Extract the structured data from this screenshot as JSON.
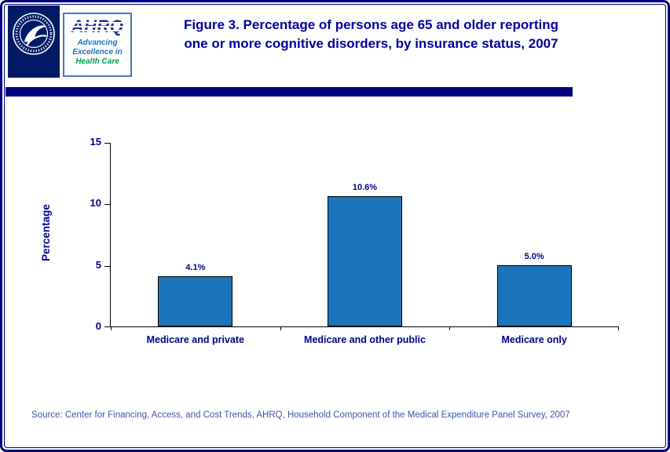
{
  "header": {
    "title_prefix": "Figure 3.",
    "title_line1": "Percentage of persons age 65 and older reporting",
    "title_line2": "one or more cognitive disorders, by insurance status, 2007"
  },
  "logos": {
    "hhs_icon": "hhs-eagle-seal-icon",
    "ahrq_name": "AHRQ",
    "ahrq_tagline": [
      "Advancing",
      "Excellence in",
      "Health Care"
    ]
  },
  "chart_data": {
    "type": "bar",
    "title": "Figure 3. Percentage of persons age 65 and older reporting one or more cognitive disorders, by insurance status, 2007",
    "categories": [
      "Medicare and private",
      "Medicare and other public",
      "Medicare only"
    ],
    "values": [
      4.1,
      10.6,
      5.0
    ],
    "value_labels": [
      "4.1%",
      "10.6%",
      "5.0%"
    ],
    "xlabel": "",
    "ylabel": "Percentage",
    "ylim": [
      0,
      15
    ],
    "yticks": [
      0,
      5,
      10,
      15
    ],
    "grid": false,
    "legend": "none"
  },
  "footer": {
    "source": "Source: Center for Financing, Access, and Cost Trends, AHRQ, Household Component of the Medical Expenditure Panel Survey, 2007"
  },
  "colors": {
    "navy_border": "#000080",
    "title_text": "#00009C",
    "axis_text": "#00008B",
    "bar_fill": "#1B75BC",
    "bar_border": "#000000",
    "source_text": "#3B55A5",
    "ahrq_blue": "#1C75BC",
    "ahrq_green": "#00A14B"
  }
}
